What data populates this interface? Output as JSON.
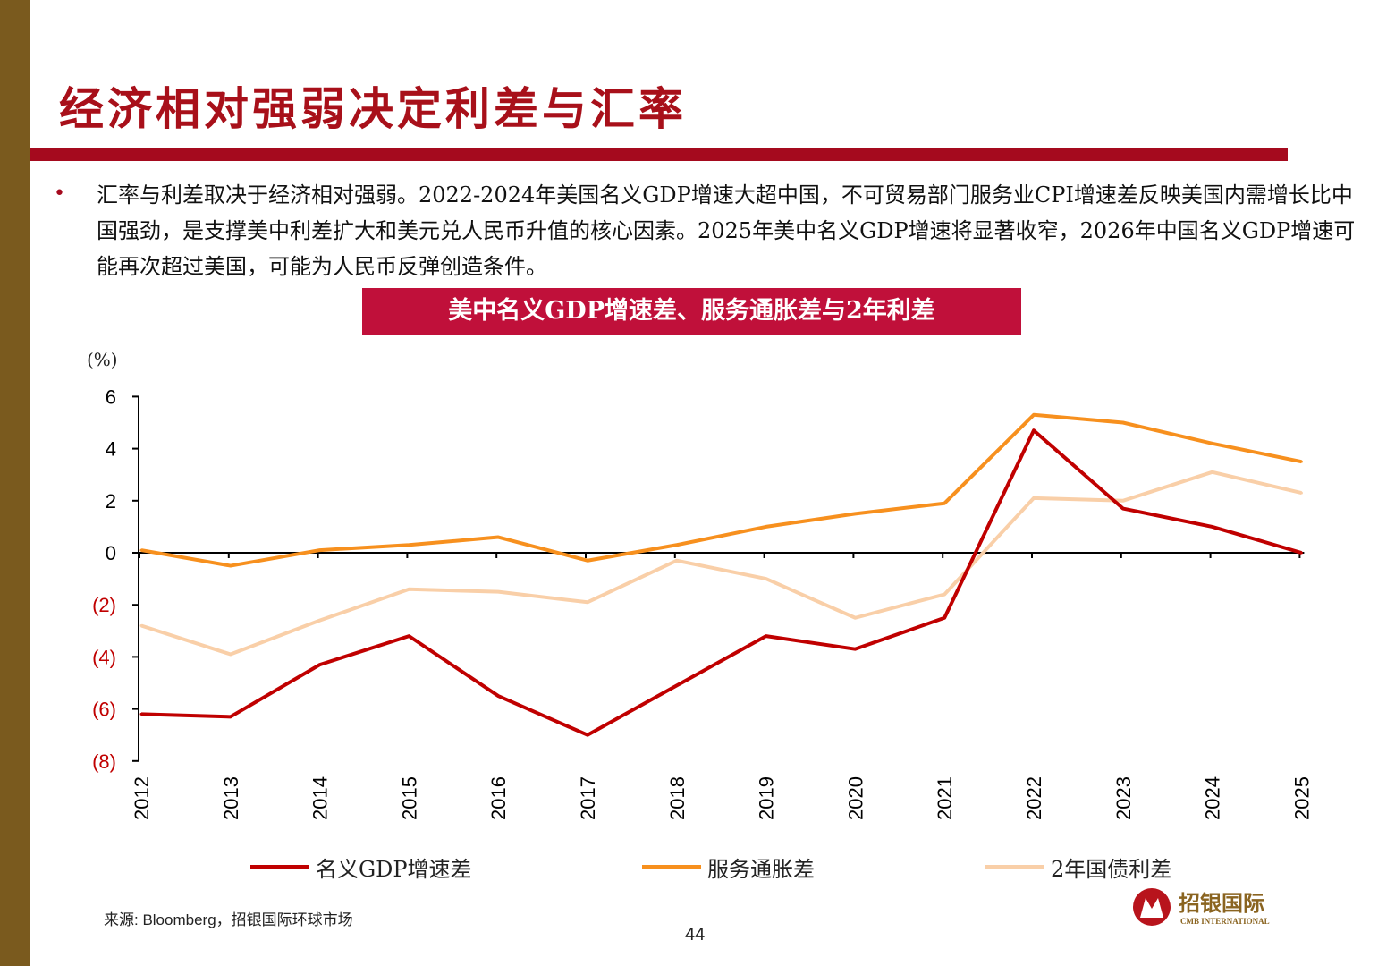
{
  "slide": {
    "title": "经济相对强弱决定利差与汇率",
    "bullet": "汇率与利差取决于经济相对强弱。2022-2024年美国名义GDP增速大超中国，不可贸易部门服务业CPI增速差反映美国内需增长比中国强劲，是支撑美中利差扩大和美元兑人民币升值的核心因素。2025年美中名义GDP增速将显著收窄，2026年中国名义GDP增速可能再次超过美国，可能为人民币反弹创造条件。",
    "source": "来源: Bloomberg，招银国际环球市场",
    "page_number": "44",
    "logo": {
      "cn": "招银国际",
      "en": "CMB INTERNATIONAL"
    }
  },
  "colors": {
    "accent": "#a50a1e",
    "sidebar": "#7a5a1e",
    "chart_title_bg": "#c0103a"
  },
  "chart_data": {
    "type": "line",
    "title": "美中名义GDP增速差、服务通胀差与2年利差",
    "ylabel": "(%)",
    "ylim": [
      -8,
      6
    ],
    "yticks": [
      6,
      4,
      2,
      0,
      -2,
      -4,
      -6,
      -8
    ],
    "ytick_labels": [
      "6",
      "4",
      "2",
      "0",
      "(2)",
      "(4)",
      "(6)",
      "(8)"
    ],
    "categories": [
      "2012",
      "2013",
      "2014",
      "2015",
      "2016",
      "2017",
      "2018",
      "2019",
      "2020",
      "2021",
      "2022",
      "2023",
      "2024",
      "2025"
    ],
    "grid": false,
    "legend_position": "bottom",
    "series": [
      {
        "name": "名义GDP增速差",
        "color": "#c00000",
        "values": [
          -6.2,
          -6.3,
          -4.3,
          -3.2,
          -5.5,
          -7.0,
          -5.1,
          -3.2,
          -3.7,
          -2.5,
          4.7,
          1.7,
          1.0,
          0.0
        ]
      },
      {
        "name": "服务通胀差",
        "color": "#f7901e",
        "values": [
          0.1,
          -0.5,
          0.1,
          0.3,
          0.6,
          -0.3,
          0.3,
          1.0,
          1.5,
          1.9,
          5.3,
          5.0,
          4.2,
          3.5
        ]
      },
      {
        "name": "2年国债利差",
        "color": "#f9cfa8",
        "values": [
          -2.8,
          -3.9,
          -2.6,
          -1.4,
          -1.5,
          -1.9,
          -0.3,
          -1.0,
          -2.5,
          -1.6,
          2.1,
          2.0,
          3.1,
          2.3
        ]
      }
    ]
  }
}
